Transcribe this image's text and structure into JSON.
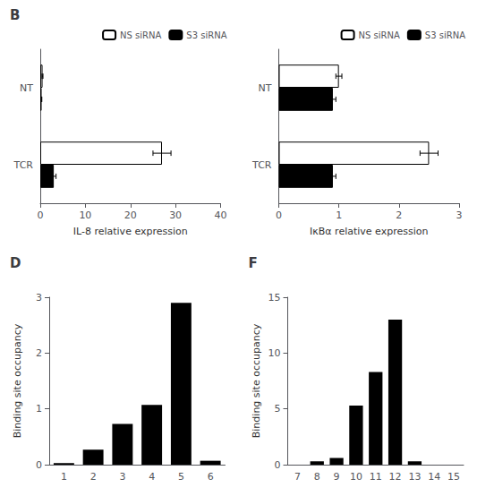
{
  "chart_data": [
    {
      "type": "bar",
      "title": "B",
      "orientation": "horizontal",
      "categories": [
        "NT",
        "TCR"
      ],
      "series": [
        {
          "name": "NS siRNA",
          "color": "#ffffff",
          "values": [
            0.5,
            27.0
          ],
          "errors": [
            0.1,
            2.0
          ]
        },
        {
          "name": "S3 siRNA",
          "color": "#000000",
          "values": [
            0.3,
            3.0
          ],
          "errors": [
            0.05,
            0.5
          ]
        }
      ],
      "xlabel": "IL-8 relative expression",
      "xlim": [
        0,
        40
      ],
      "xticks": [
        0,
        10,
        20,
        30,
        40
      ],
      "legend": "upper right",
      "grid": false
    },
    {
      "type": "bar",
      "orientation": "horizontal",
      "categories": [
        "NT",
        "TCR"
      ],
      "series": [
        {
          "name": "NS siRNA",
          "color": "#ffffff",
          "values": [
            1.0,
            2.5
          ],
          "errors": [
            0.05,
            0.15
          ]
        },
        {
          "name": "S3 siRNA",
          "color": "#000000",
          "values": [
            0.9,
            0.9
          ],
          "errors": [
            0.05,
            0.05
          ]
        }
      ],
      "xlabel": "IκBα relative expression",
      "xlim": [
        0,
        3
      ],
      "xticks": [
        0,
        1,
        2,
        3
      ],
      "legend": "upper right",
      "grid": false
    },
    {
      "type": "bar",
      "title": "D",
      "categories": [
        "1",
        "2",
        "3",
        "4",
        "5",
        "6"
      ],
      "values": [
        0.03,
        0.27,
        0.73,
        1.07,
        2.9,
        0.07
      ],
      "color": "#000000",
      "ylabel": "Binding site occupancy",
      "ylim": [
        0,
        3
      ],
      "yticks": [
        0,
        1,
        2,
        3
      ],
      "grid": false
    },
    {
      "type": "bar",
      "title": "F",
      "categories": [
        "7",
        "8",
        "9",
        "10",
        "11",
        "12",
        "13",
        "14",
        "15"
      ],
      "values": [
        0.0,
        0.3,
        0.6,
        5.3,
        8.3,
        13.0,
        0.3,
        0.0,
        0.0
      ],
      "color": "#000000",
      "ylabel": "Binding site occupancy",
      "ylim": [
        0,
        15
      ],
      "yticks": [
        0,
        5,
        10,
        15
      ],
      "grid": false
    }
  ]
}
